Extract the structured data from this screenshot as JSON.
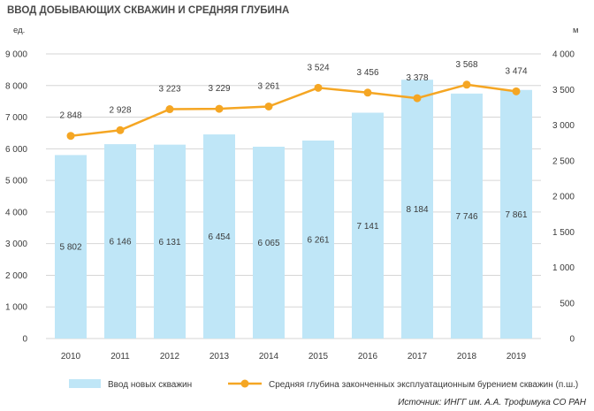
{
  "title": "ВВОД ДОБЫВАЮЩИХ СКВАЖИН И СРЕДНЯЯ ГЛУБИНА",
  "left_unit": "ед.",
  "right_unit": "м",
  "source": "Источник: ИНГГ им. А.А. Трофимука СО РАН",
  "colors": {
    "bar": "#bfe6f7",
    "line": "#f5a623",
    "grid": "#d6d6d6"
  },
  "chart_data": {
    "type": "bar",
    "categories": [
      "2010",
      "2011",
      "2012",
      "2013",
      "2014",
      "2015",
      "2016",
      "2017",
      "2018",
      "2019"
    ],
    "series": [
      {
        "name": "Ввод новых скважин",
        "type": "bar",
        "axis": "left",
        "values": [
          5802,
          6146,
          6131,
          6454,
          6065,
          6261,
          7141,
          8184,
          7746,
          7861
        ],
        "labels": [
          "5 802",
          "6 146",
          "6 131",
          "6 454",
          "6 065",
          "6 261",
          "7 141",
          "8 184",
          "7 746",
          "7 861"
        ]
      },
      {
        "name": "Средняя глубина законченных эксплуатационным бурением скважин (п.ш.)",
        "type": "line",
        "axis": "right",
        "values": [
          2848,
          2928,
          3223,
          3229,
          3261,
          3524,
          3456,
          3378,
          3568,
          3474
        ],
        "labels": [
          "2 848",
          "2 928",
          "3 223",
          "3 229",
          "3 261",
          "3 524",
          "3 456",
          "3 378",
          "3 568",
          "3 474"
        ]
      }
    ],
    "left_axis": {
      "ylim": [
        0,
        9000
      ],
      "ticks": [
        0,
        1000,
        2000,
        3000,
        4000,
        5000,
        6000,
        7000,
        8000,
        9000
      ],
      "tick_labels": [
        "0",
        "1 000",
        "2 000",
        "3 000",
        "4 000",
        "5 000",
        "6 000",
        "7 000",
        "8 000",
        "9 000"
      ]
    },
    "right_axis": {
      "ylim": [
        0,
        4000
      ],
      "ticks": [
        0,
        500,
        1000,
        1500,
        2000,
        2500,
        3000,
        3500,
        4000
      ],
      "tick_labels": [
        "0",
        "500",
        "1 000",
        "1 500",
        "2 000",
        "2 500",
        "3 000",
        "3 500",
        "4 000"
      ]
    },
    "grid": true,
    "legend_position": "bottom"
  }
}
